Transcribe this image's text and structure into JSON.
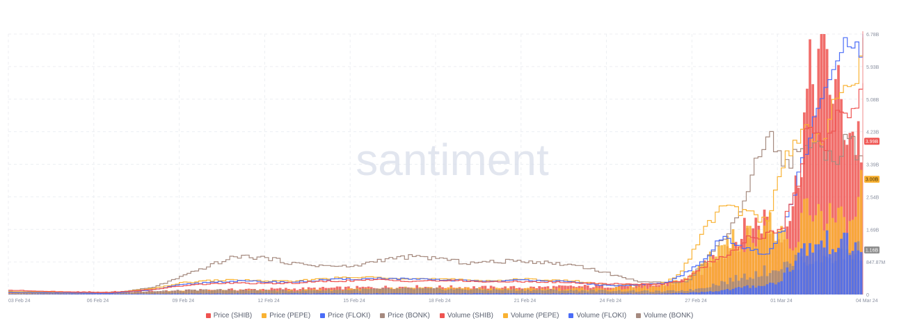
{
  "chart_data": {
    "type": "line",
    "watermark": "santiment",
    "x_ticks": [
      "03 Feb 24",
      "06 Feb 24",
      "09 Feb 24",
      "12 Feb 24",
      "15 Feb 24",
      "18 Feb 24",
      "21 Feb 24",
      "24 Feb 24",
      "27 Feb 24",
      "01 Mar 24",
      "04 Mar 24"
    ],
    "y_ticks": [
      "6.78B",
      "5.93B",
      "5.08B",
      "4.23B",
      "3.39B",
      "2.54B",
      "1.69B",
      "847.87M",
      "0"
    ],
    "ylim": [
      0,
      6.78
    ],
    "value_badges": [
      {
        "label": "3.99B",
        "value": 3.99,
        "color": "#ef5350"
      },
      {
        "label": "3.00B",
        "value": 3.0,
        "color": "#f9b233"
      },
      {
        "label": "1.16B",
        "value": 1.16,
        "color": "#8d8d8d"
      }
    ],
    "legend": [
      {
        "label": "Price (SHIB)",
        "color": "#ef5350"
      },
      {
        "label": "Price (PEPE)",
        "color": "#f9b233"
      },
      {
        "label": "Price (FLOKI)",
        "color": "#4a6cf7"
      },
      {
        "label": "Price (BONK)",
        "color": "#a58a7f"
      },
      {
        "label": "Volume (SHIB)",
        "color": "#ef5350"
      },
      {
        "label": "Volume (PEPE)",
        "color": "#f9b233"
      },
      {
        "label": "Volume (FLOKI)",
        "color": "#4a6cf7"
      },
      {
        "label": "Volume (BONK)",
        "color": "#a58a7f"
      }
    ],
    "series_shapes": {
      "price_bonk": [
        [
          0,
          0.08
        ],
        [
          2,
          0.06
        ],
        [
          3.5,
          0.03
        ],
        [
          5,
          0.18
        ],
        [
          6,
          0.45
        ],
        [
          7,
          0.75
        ],
        [
          8,
          1.0
        ],
        [
          9,
          0.95
        ],
        [
          10,
          0.8
        ],
        [
          11,
          0.75
        ],
        [
          12,
          0.72
        ],
        [
          13,
          0.9
        ],
        [
          14,
          0.98
        ],
        [
          15,
          0.95
        ],
        [
          16,
          0.82
        ],
        [
          17,
          0.85
        ],
        [
          18,
          0.88
        ],
        [
          19,
          0.82
        ],
        [
          20,
          0.75
        ],
        [
          21,
          0.55
        ],
        [
          22,
          0.35
        ],
        [
          23,
          0.3
        ],
        [
          23.8,
          0.35
        ],
        [
          25,
          1.4
        ],
        [
          25.6,
          2.1
        ],
        [
          26.6,
          4.3
        ],
        [
          27.2,
          3.3
        ],
        [
          28,
          4.0
        ],
        [
          29,
          3.5
        ],
        [
          29.4,
          4.2
        ],
        [
          30,
          3.3
        ]
      ],
      "price_shib": [
        [
          0,
          0.11
        ],
        [
          2,
          0.07
        ],
        [
          3.5,
          0.05
        ],
        [
          5,
          0.13
        ],
        [
          6,
          0.22
        ],
        [
          7,
          0.28
        ],
        [
          8,
          0.3
        ],
        [
          9,
          0.28
        ],
        [
          10,
          0.3
        ],
        [
          11,
          0.34
        ],
        [
          12,
          0.36
        ],
        [
          13,
          0.38
        ],
        [
          14,
          0.35
        ],
        [
          15,
          0.36
        ],
        [
          16,
          0.35
        ],
        [
          17,
          0.32
        ],
        [
          18,
          0.34
        ],
        [
          19,
          0.32
        ],
        [
          20,
          0.3
        ],
        [
          21,
          0.28
        ],
        [
          22,
          0.27
        ],
        [
          23,
          0.28
        ],
        [
          23.6,
          0.35
        ],
        [
          24.5,
          0.8
        ],
        [
          25.2,
          1.05
        ],
        [
          26,
          1.5
        ],
        [
          27,
          1.6
        ],
        [
          27.6,
          2.6
        ],
        [
          28,
          4.4
        ],
        [
          28.6,
          3.9
        ],
        [
          29,
          4.6
        ],
        [
          29.6,
          4.9
        ],
        [
          30,
          5.5
        ]
      ],
      "price_pepe": [
        [
          0,
          0.07
        ],
        [
          2,
          0.05
        ],
        [
          3.5,
          0.04
        ],
        [
          5,
          0.15
        ],
        [
          6,
          0.3
        ],
        [
          7,
          0.36
        ],
        [
          8,
          0.38
        ],
        [
          9,
          0.35
        ],
        [
          10,
          0.34
        ],
        [
          11,
          0.42
        ],
        [
          12,
          0.44
        ],
        [
          13,
          0.45
        ],
        [
          14,
          0.42
        ],
        [
          15,
          0.4
        ],
        [
          16,
          0.38
        ],
        [
          17,
          0.36
        ],
        [
          18,
          0.4
        ],
        [
          19,
          0.38
        ],
        [
          20,
          0.34
        ],
        [
          21,
          0.25
        ],
        [
          22,
          0.24
        ],
        [
          23,
          0.3
        ],
        [
          23.6,
          0.6
        ],
        [
          24.4,
          1.7
        ],
        [
          25,
          2.3
        ],
        [
          26,
          2.1
        ],
        [
          26.6,
          1.9
        ],
        [
          27.2,
          3.6
        ],
        [
          28,
          4.3
        ],
        [
          28.6,
          4.1
        ],
        [
          29.2,
          5.5
        ],
        [
          29.6,
          5.2
        ],
        [
          30,
          6.78
        ]
      ],
      "price_floki": [
        [
          0,
          0.05
        ],
        [
          2,
          0.04
        ],
        [
          3.5,
          0.03
        ],
        [
          5,
          0.12
        ],
        [
          6,
          0.25
        ],
        [
          7,
          0.32
        ],
        [
          8,
          0.35
        ],
        [
          9,
          0.33
        ],
        [
          10,
          0.32
        ],
        [
          11,
          0.38
        ],
        [
          12,
          0.4
        ],
        [
          13,
          0.42
        ],
        [
          14,
          0.4
        ],
        [
          15,
          0.38
        ],
        [
          16,
          0.36
        ],
        [
          17,
          0.34
        ],
        [
          18,
          0.38
        ],
        [
          19,
          0.36
        ],
        [
          20,
          0.3
        ],
        [
          21,
          0.23
        ],
        [
          22,
          0.24
        ],
        [
          23,
          0.3
        ],
        [
          23.6,
          0.5
        ],
        [
          24.4,
          0.9
        ],
        [
          25,
          1.5
        ],
        [
          26,
          1.2
        ],
        [
          26.6,
          1.0
        ],
        [
          27.2,
          1.8
        ],
        [
          28,
          3.9
        ],
        [
          28.6,
          5.2
        ],
        [
          29.2,
          6.5
        ],
        [
          29.8,
          6.2
        ],
        [
          30,
          6.78
        ]
      ],
      "volume_bonk": [
        [
          0,
          0.02
        ],
        [
          5,
          0.08
        ],
        [
          7,
          0.12
        ],
        [
          10,
          0.1
        ],
        [
          14,
          0.15
        ],
        [
          18,
          0.12
        ],
        [
          21,
          0.1
        ],
        [
          23,
          0.08
        ],
        [
          24,
          0.12
        ],
        [
          25,
          0.3
        ],
        [
          26,
          0.5
        ],
        [
          27,
          0.7
        ],
        [
          28,
          0.9
        ],
        [
          29,
          1.0
        ],
        [
          30,
          1.16
        ]
      ],
      "volume_floki": [
        [
          0,
          0.01
        ],
        [
          5,
          0.02
        ],
        [
          10,
          0.03
        ],
        [
          18,
          0.03
        ],
        [
          23,
          0.02
        ],
        [
          24,
          0.05
        ],
        [
          25,
          0.1
        ],
        [
          26,
          0.2
        ],
        [
          27,
          0.3
        ],
        [
          28,
          1.2
        ],
        [
          29,
          1.4
        ],
        [
          30,
          1.16
        ]
      ],
      "volume_pepe": [
        [
          0,
          0.04
        ],
        [
          5,
          0.06
        ],
        [
          7,
          0.1
        ],
        [
          10,
          0.1
        ],
        [
          14,
          0.18
        ],
        [
          18,
          0.14
        ],
        [
          21,
          0.15
        ],
        [
          23,
          0.2
        ],
        [
          24,
          0.5
        ],
        [
          25,
          1.3
        ],
        [
          26,
          1.5
        ],
        [
          26.6,
          1.9
        ],
        [
          27,
          1.6
        ],
        [
          27.6,
          1.0
        ],
        [
          28,
          2.3
        ],
        [
          29,
          2.0
        ],
        [
          29.6,
          1.6
        ],
        [
          30,
          3.0
        ]
      ],
      "volume_shib": [
        [
          0,
          0.06
        ],
        [
          5,
          0.08
        ],
        [
          7,
          0.12
        ],
        [
          10,
          0.15
        ],
        [
          14,
          0.2
        ],
        [
          18,
          0.18
        ],
        [
          21,
          0.22
        ],
        [
          23,
          0.25
        ],
        [
          24,
          0.4
        ],
        [
          25,
          1.1
        ],
        [
          26,
          1.7
        ],
        [
          26.6,
          2.0
        ],
        [
          27,
          1.4
        ],
        [
          27.6,
          2.4
        ],
        [
          28,
          4.9
        ],
        [
          28.6,
          6.6
        ],
        [
          29,
          5.3
        ],
        [
          29.6,
          4.2
        ],
        [
          30,
          3.99
        ]
      ]
    }
  }
}
